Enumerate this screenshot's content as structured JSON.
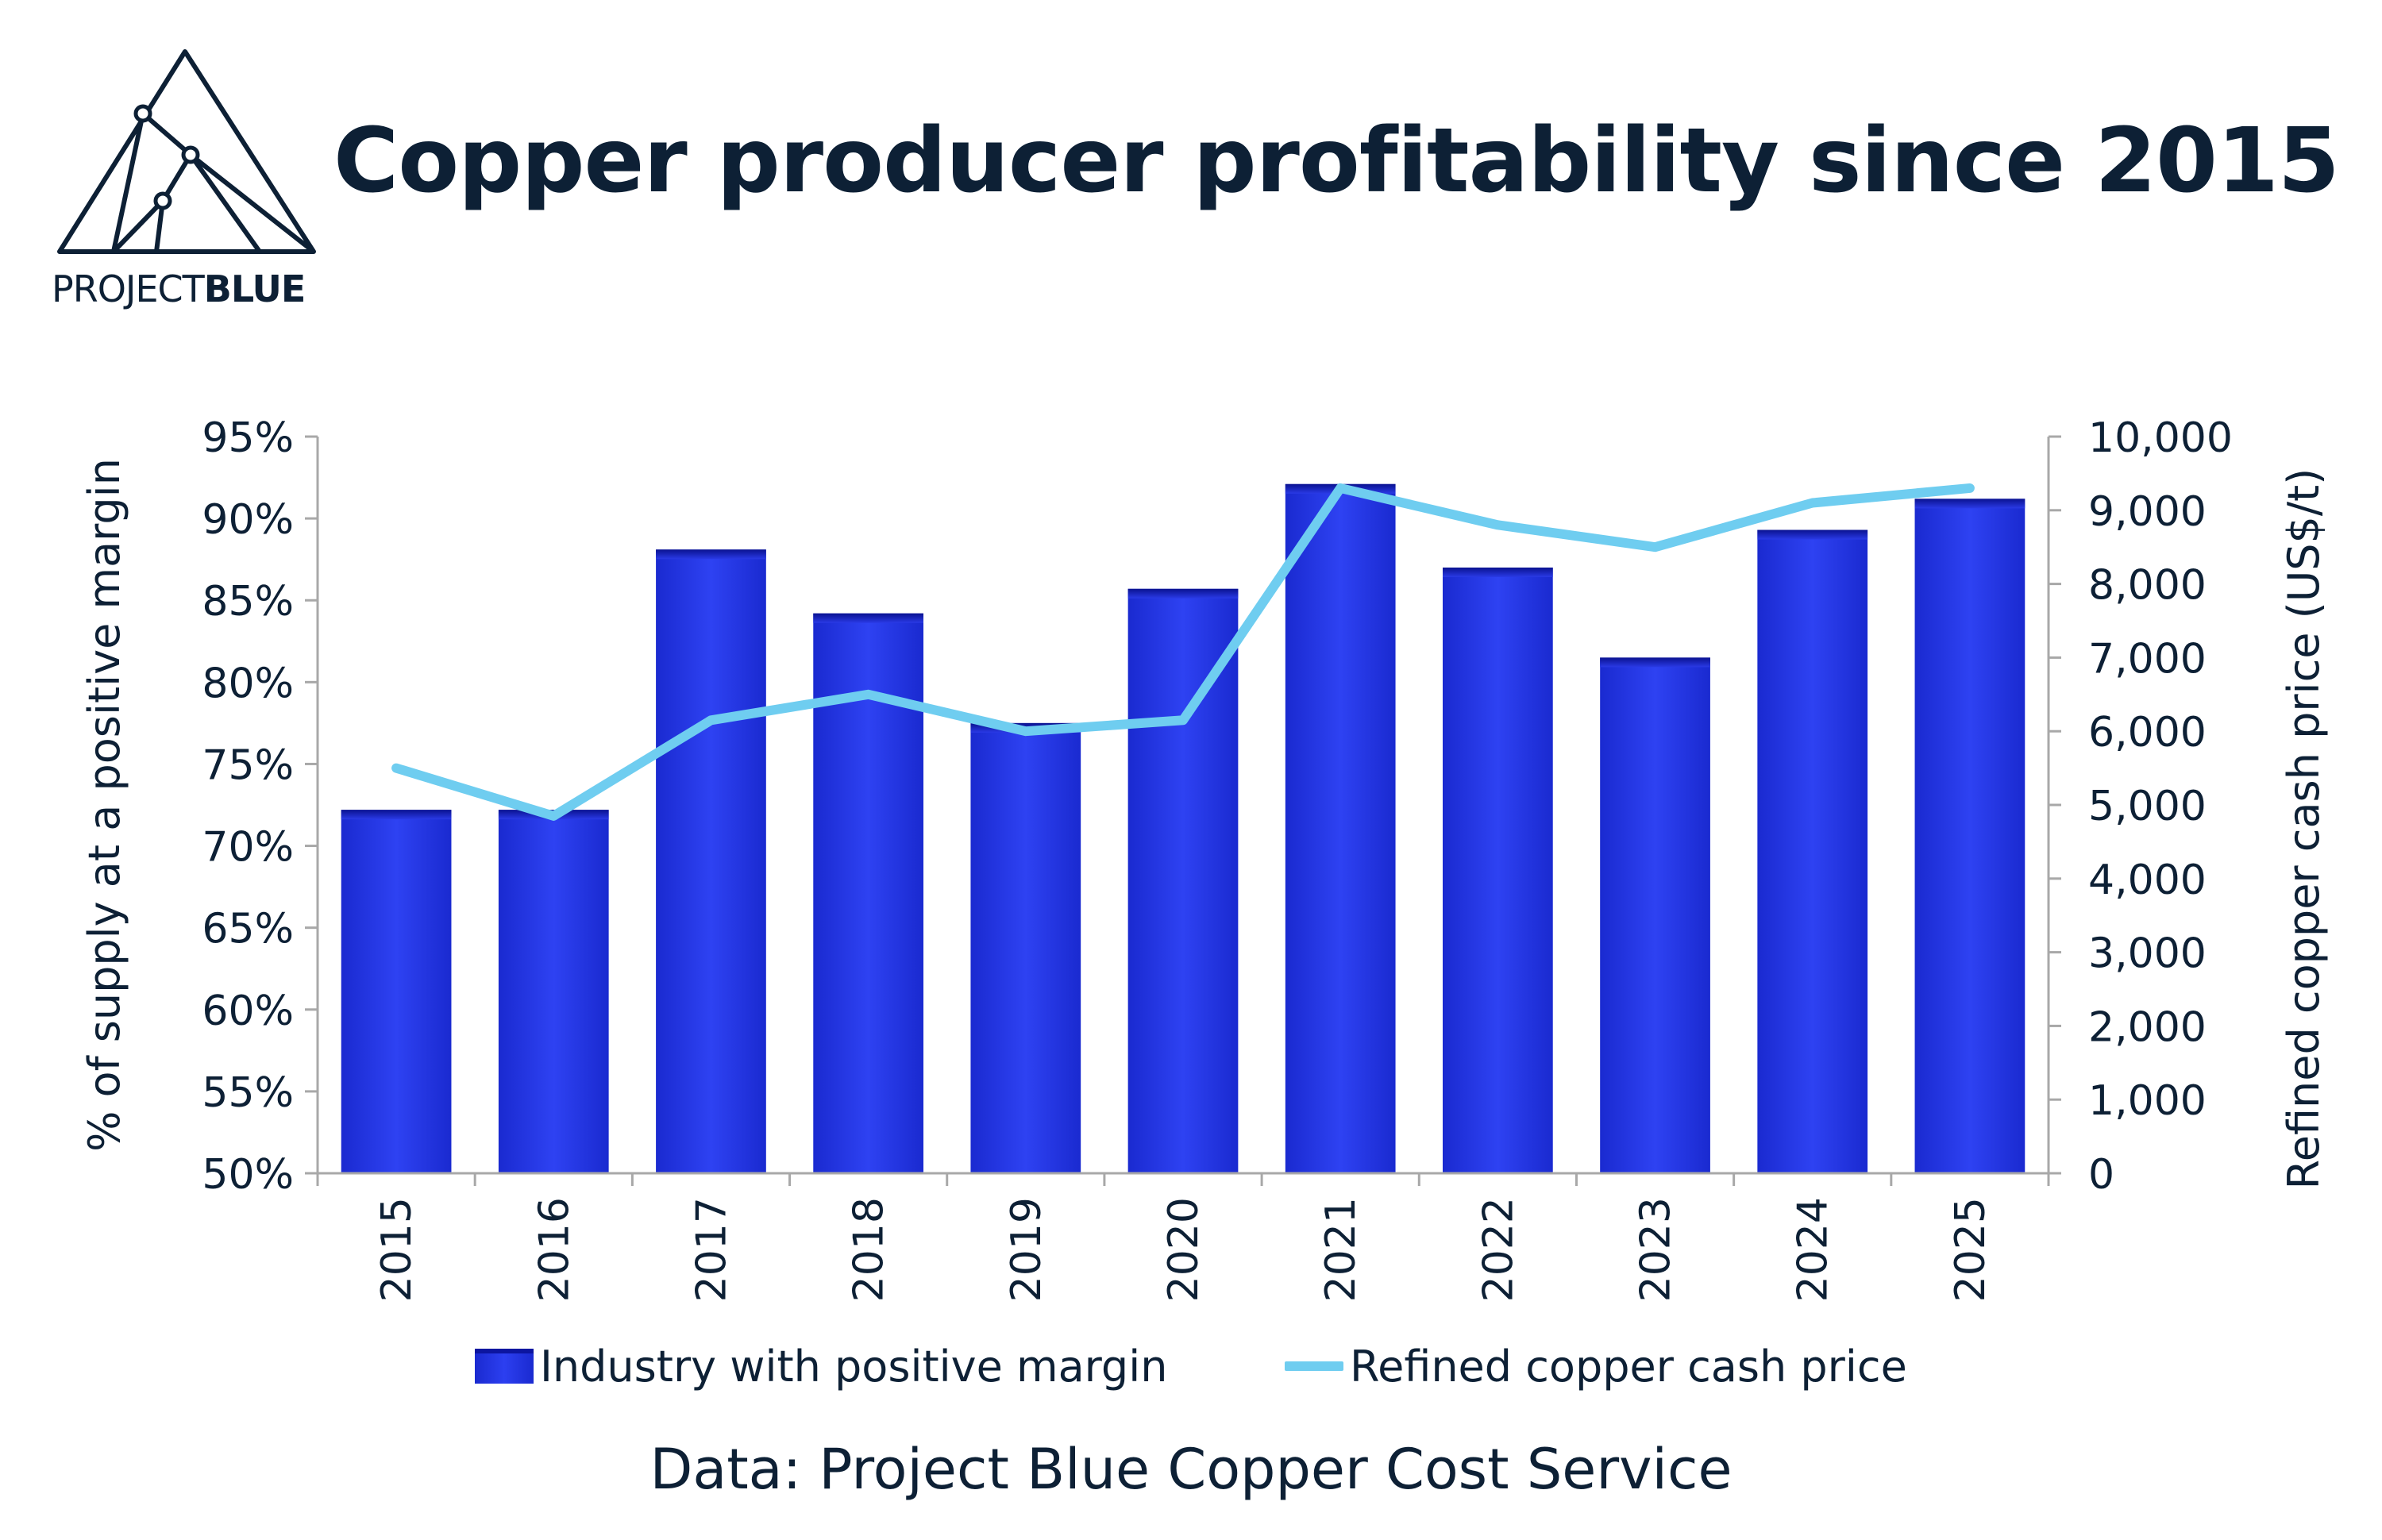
{
  "brand": {
    "logo_text_light": "PROJECT",
    "logo_text_bold": "BLUE"
  },
  "title": "Copper producer profitability since 2015",
  "source_note": "Data: Project Blue Copper Cost Service",
  "colors": {
    "bar": "#1a2ad0",
    "bar_top": "#0c15a0",
    "line": "#6fcdf0",
    "text": "#0d2035"
  },
  "chart_data": {
    "type": "bar",
    "categories": [
      "2015",
      "2016",
      "2017",
      "2018",
      "2019",
      "2020",
      "2021",
      "2022",
      "2023",
      "2024",
      "2025"
    ],
    "series": [
      {
        "name": "Industry with positive margin",
        "type": "bar",
        "axis": "left",
        "values": [
          72.2,
          72.2,
          88.1,
          84.2,
          77.5,
          85.7,
          92.1,
          87.0,
          81.5,
          89.3,
          91.2
        ]
      },
      {
        "name": "Refined copper cash price",
        "type": "line",
        "axis": "right",
        "values": [
          5500,
          4850,
          6150,
          6500,
          6000,
          6150,
          9300,
          8800,
          8500,
          9100,
          9300
        ]
      }
    ],
    "ylabel": "% of supply at a positive margin",
    "y2label": "Refined copper cash price (US$/t)",
    "ylim": [
      50,
      95
    ],
    "y2lim": [
      0,
      10000
    ],
    "y_ticks": [
      "50%",
      "55%",
      "60%",
      "65%",
      "70%",
      "75%",
      "80%",
      "85%",
      "90%",
      "95%"
    ],
    "y2_ticks": [
      "0",
      "1,000",
      "2,000",
      "3,000",
      "4,000",
      "5,000",
      "6,000",
      "7,000",
      "8,000",
      "9,000",
      "10,000"
    ],
    "legend_position": "bottom",
    "grid": false
  }
}
